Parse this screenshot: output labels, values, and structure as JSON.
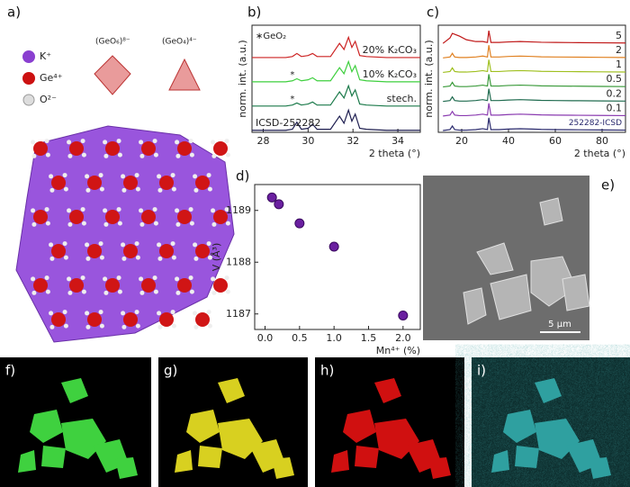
{
  "panel_labels": [
    "a)",
    "b)",
    "c)",
    "d)",
    "e)",
    "f)",
    "g)",
    "h)",
    "i)"
  ],
  "structure_legend": [
    "K⁺",
    "Ge⁴⁺",
    "O²⁻"
  ],
  "polyhedra": [
    "(GeO₆)⁸⁻",
    "(GeO₄)⁴⁻"
  ],
  "scale_bar": "5 μm",
  "chart_data": [
    {
      "type": "line",
      "xlabel": "2 theta (°)",
      "ylabel": "norm. int. (a.u.)",
      "annotations": [
        "∗GeO₂",
        "*",
        "*"
      ],
      "x": [
        27.5,
        28.5,
        29.0,
        29.3,
        29.5,
        29.7,
        30.0,
        30.2,
        30.4,
        31.0,
        31.4,
        31.6,
        31.8,
        31.95,
        32.1,
        32.3,
        32.6,
        33.5,
        35
      ],
      "xlim": [
        27.5,
        35
      ],
      "xticks": [
        28,
        30,
        32,
        34
      ],
      "ylim": [
        -0.1,
        5.2
      ],
      "series": [
        {
          "name": "ICSD-252282",
          "color": "#1e1e50",
          "values": [
            0,
            0,
            0,
            0.05,
            0.4,
            0.05,
            0.1,
            0.3,
            0.05,
            0.05,
            0.7,
            0.35,
            1.0,
            0.45,
            0.8,
            0.1,
            0.05,
            0,
            0
          ]
        },
        {
          "name": "stech.",
          "color": "#1b7a4a",
          "values": [
            1.2,
            1.2,
            1.2,
            1.25,
            1.35,
            1.25,
            1.3,
            1.4,
            1.25,
            1.25,
            1.9,
            1.6,
            2.2,
            1.7,
            2.0,
            1.3,
            1.25,
            1.2,
            1.2
          ]
        },
        {
          "name": "10% K₂CO₃",
          "color": "#3ecf3e",
          "values": [
            2.4,
            2.4,
            2.4,
            2.45,
            2.55,
            2.45,
            2.5,
            2.6,
            2.45,
            2.45,
            3.1,
            2.8,
            3.4,
            2.9,
            3.2,
            2.5,
            2.45,
            2.4,
            2.4
          ]
        },
        {
          "name": "20% K₂CO₃",
          "color": "#cc2222",
          "values": [
            3.6,
            3.6,
            3.6,
            3.65,
            3.8,
            3.65,
            3.7,
            3.8,
            3.65,
            3.65,
            4.3,
            4.0,
            4.6,
            4.1,
            4.4,
            3.7,
            3.65,
            3.6,
            3.6
          ]
        }
      ]
    },
    {
      "type": "line",
      "xlabel": "2 theta (°)",
      "ylabel": "norm. int. (a.u.)",
      "x": [
        12,
        15,
        16,
        17,
        19,
        22,
        26,
        29,
        31,
        31.6,
        32.5,
        36,
        40,
        45,
        50,
        54,
        60,
        70,
        80,
        90
      ],
      "xlim": [
        10,
        90
      ],
      "xticks": [
        20,
        40,
        60,
        80
      ],
      "ylim": [
        -0.1,
        5.8
      ],
      "series": [
        {
          "name": "252282-ICSD",
          "color": "#2a2a6e",
          "values": [
            0,
            0.05,
            0.25,
            0.05,
            0.02,
            0.02,
            0.05,
            0.1,
            0.05,
            0.7,
            0.05,
            0.05,
            0.08,
            0.1,
            0.08,
            0.06,
            0.05,
            0.04,
            0.03,
            0.02
          ]
        },
        {
          "name": "0.1",
          "color": "#8a3ab0",
          "values": [
            0.8,
            0.85,
            1.05,
            0.85,
            0.82,
            0.82,
            0.85,
            0.9,
            0.85,
            1.5,
            0.85,
            0.85,
            0.88,
            0.9,
            0.88,
            0.86,
            0.85,
            0.84,
            0.83,
            0.82
          ]
        },
        {
          "name": "0.2",
          "color": "#1f6b4f",
          "values": [
            1.6,
            1.65,
            1.85,
            1.65,
            1.62,
            1.62,
            1.65,
            1.7,
            1.65,
            2.3,
            1.65,
            1.65,
            1.68,
            1.7,
            1.68,
            1.66,
            1.65,
            1.64,
            1.63,
            1.62
          ]
        },
        {
          "name": "0.5",
          "color": "#3a9a3a",
          "values": [
            2.4,
            2.45,
            2.65,
            2.45,
            2.42,
            2.42,
            2.45,
            2.5,
            2.45,
            3.1,
            2.45,
            2.45,
            2.48,
            2.5,
            2.48,
            2.46,
            2.45,
            2.44,
            2.43,
            2.42
          ]
        },
        {
          "name": "1",
          "color": "#a0c020",
          "values": [
            3.2,
            3.25,
            3.45,
            3.25,
            3.22,
            3.22,
            3.25,
            3.3,
            3.25,
            3.9,
            3.25,
            3.25,
            3.28,
            3.3,
            3.28,
            3.26,
            3.25,
            3.24,
            3.23,
            3.22
          ]
        },
        {
          "name": "2",
          "color": "#e08020",
          "values": [
            4.0,
            4.05,
            4.25,
            4.05,
            4.02,
            4.02,
            4.05,
            4.1,
            4.05,
            4.7,
            4.05,
            4.05,
            4.08,
            4.1,
            4.08,
            4.06,
            4.05,
            4.04,
            4.03,
            4.02
          ]
        },
        {
          "name": "5",
          "color": "#c01818",
          "values": [
            4.8,
            5.1,
            5.35,
            5.3,
            5.2,
            5.0,
            4.9,
            4.9,
            4.85,
            5.5,
            4.85,
            4.85,
            4.88,
            4.9,
            4.88,
            4.86,
            4.85,
            4.84,
            4.83,
            4.82
          ]
        }
      ]
    },
    {
      "type": "scatter",
      "xlabel": "Mn⁴⁺ (%)",
      "ylabel": "V (Å³)",
      "color": "#6a1fa0",
      "x": [
        0.1,
        0.2,
        0.5,
        1.0,
        2.0
      ],
      "y": [
        1189.25,
        1189.12,
        1188.75,
        1188.3,
        1186.97
      ],
      "xlim": [
        -0.15,
        2.25
      ],
      "xticks": [
        {
          "value": 0,
          "label": "0.0"
        },
        0.5,
        {
          "value": 1,
          "label": "1.0"
        },
        1.5,
        {
          "value": 2,
          "label": "2.0"
        }
      ],
      "ylim": [
        1186.7,
        1189.5
      ],
      "yticks": [
        1187,
        1188,
        1189
      ]
    }
  ]
}
